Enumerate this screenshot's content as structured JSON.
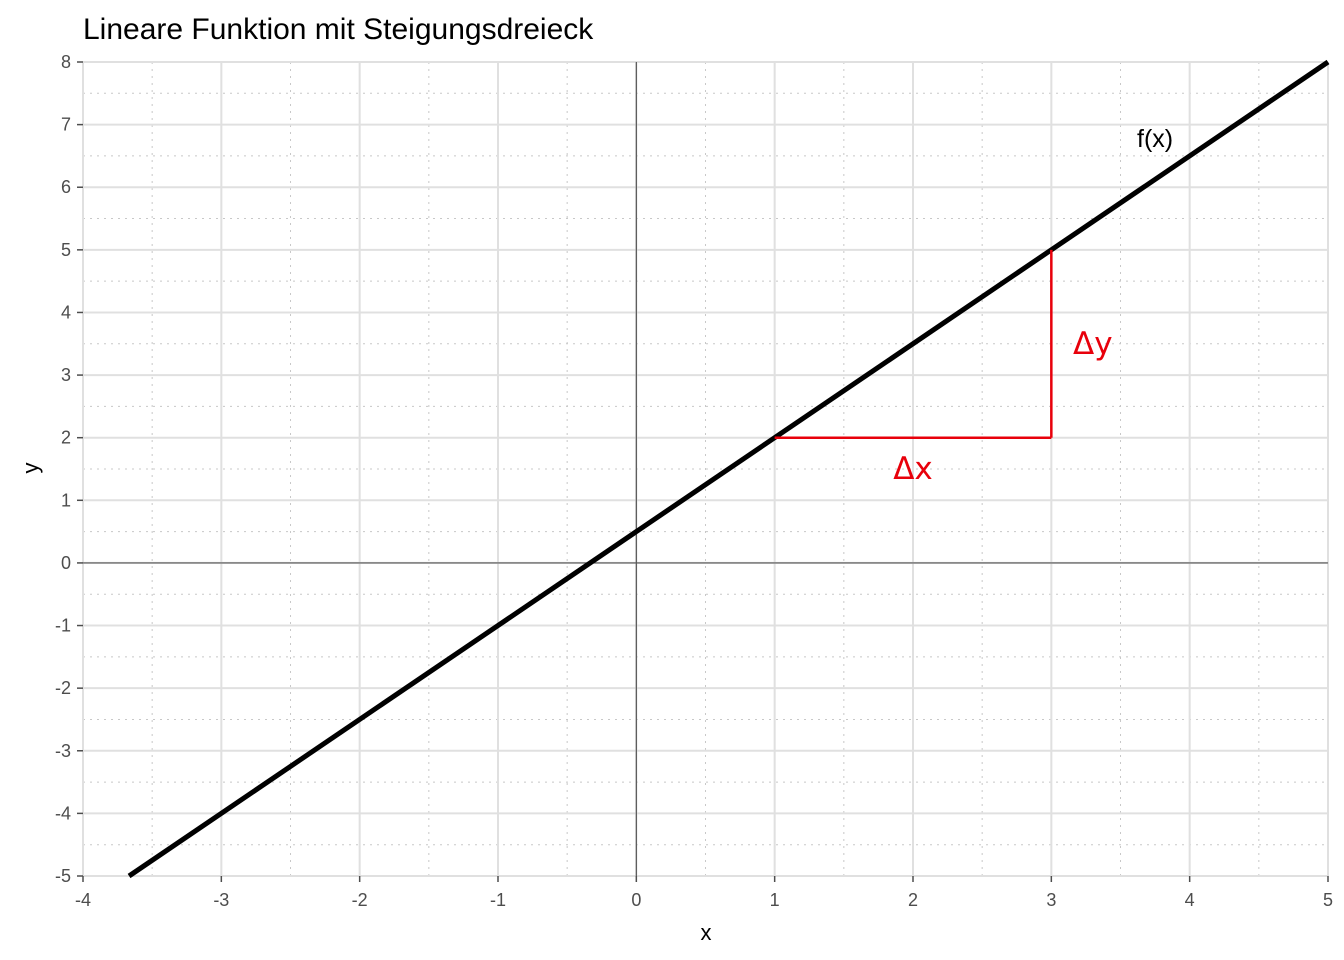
{
  "chart_data": {
    "type": "line",
    "title": "Lineare Funktion mit Steigungsdreieck",
    "xlabel": "x",
    "ylabel": "y",
    "xlim": [
      -4,
      5
    ],
    "ylim": [
      -5,
      8
    ],
    "x_ticks": [
      "-4",
      "-3",
      "-2",
      "-1",
      "0",
      "1",
      "2",
      "3",
      "4",
      "5"
    ],
    "y_ticks": [
      "-5",
      "-4",
      "-3",
      "-2",
      "-1",
      "0",
      "1",
      "2",
      "3",
      "4",
      "5",
      "6",
      "7",
      "8"
    ],
    "grid": true,
    "minor_grid": true,
    "zero_lines": true,
    "series": [
      {
        "name": "f(x)",
        "color": "#000000",
        "function": {
          "slope": 1.5,
          "intercept": 0.5
        },
        "x": [
          -3.667,
          5
        ],
        "y": [
          -5,
          8
        ]
      }
    ],
    "slope_triangle": {
      "color": "#e8000b",
      "start": {
        "x": 1,
        "y": 2
      },
      "corner": {
        "x": 3,
        "y": 2
      },
      "end": {
        "x": 3,
        "y": 5
      },
      "dx_label": "Δx",
      "dy_label": "Δy"
    },
    "annotations": [
      {
        "text": "f(x)",
        "x": 3.75,
        "y": 6.8,
        "color": "#000000"
      },
      {
        "text": "Δx",
        "x": 2,
        "y": 1.5,
        "color": "#e8000b"
      },
      {
        "text": "Δy",
        "x": 3.3,
        "y": 3.5,
        "color": "#e8000b"
      }
    ]
  }
}
